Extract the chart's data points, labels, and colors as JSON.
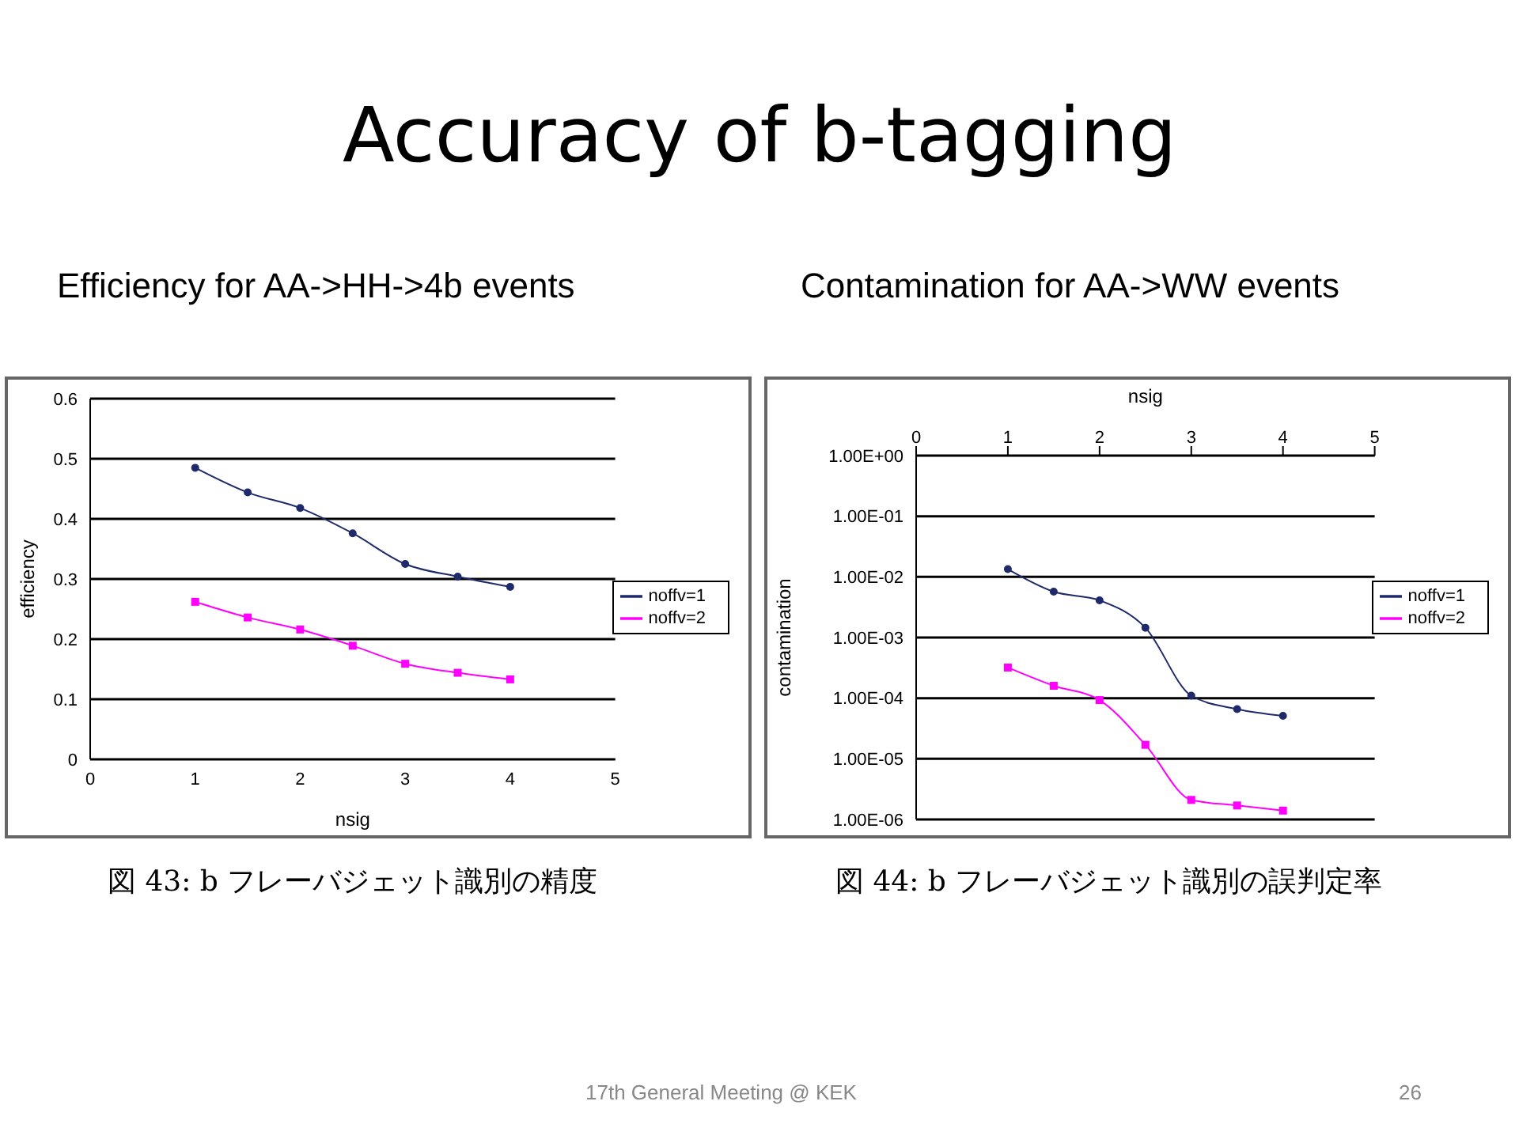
{
  "chart_data": [
    {
      "type": "line",
      "title": "Accuracy of b-tagging",
      "subtitle": "Efficiency for AA->HH->4b events",
      "xlabel": "nsig",
      "ylabel": "efficiency",
      "x": [
        1,
        1.5,
        2,
        2.5,
        3,
        3.5,
        4
      ],
      "xlim": [
        0,
        5
      ],
      "xticks": [
        0,
        1,
        2,
        3,
        4,
        5
      ],
      "ylim": [
        0,
        0.6
      ],
      "yticks": [
        0,
        0.1,
        0.2,
        0.3,
        0.4,
        0.5,
        0.6
      ],
      "grid": "y",
      "legend": "right",
      "line_style": "solid",
      "annotations": [
        "図 43: b フレーバジェット識別の精度"
      ],
      "series": [
        {
          "name": "noffv=1",
          "color": "#1f2a6b",
          "marker": "circle",
          "values": [
            0.485,
            0.444,
            0.418,
            0.376,
            0.325,
            0.304,
            0.287
          ]
        },
        {
          "name": "noffv=2",
          "color": "#ff00ff",
          "marker": "square",
          "values": [
            0.262,
            0.236,
            0.216,
            0.189,
            0.159,
            0.144,
            0.133
          ]
        }
      ]
    },
    {
      "type": "line",
      "subtitle": "Contamination for AA->WW events",
      "xlabel": "nsig",
      "ylabel": "contamination",
      "x": [
        1,
        1.5,
        2,
        2.5,
        3,
        3.5,
        4
      ],
      "xlim": [
        0,
        5
      ],
      "xticks": [
        0,
        1,
        2,
        3,
        4,
        5
      ],
      "log": "y",
      "ylim": [
        1e-06,
        1
      ],
      "yticks": [
        {
          "value": 1e-06,
          "label": "1.00E-06"
        },
        {
          "value": 1e-05,
          "label": "1.00E-05"
        },
        {
          "value": 0.0001,
          "label": "1.00E-04"
        },
        {
          "value": 0.001,
          "label": "1.00E-03"
        },
        {
          "value": 0.01,
          "label": "1.00E-02"
        },
        {
          "value": 0.1,
          "label": "1.00E-01"
        },
        {
          "value": 1,
          "label": "1.00E+00"
        }
      ],
      "grid": "y",
      "legend": "right",
      "line_style": "solid",
      "annotations": [
        "図 44: b フレーバジェット識別の誤判定率",
        "17th General Meeting @ KEK",
        "26"
      ],
      "series": [
        {
          "name": "noffv=1",
          "color": "#1f2a6b",
          "marker": "circle",
          "values": [
            0.0134,
            0.0057,
            0.0041,
            0.00145,
            0.00011,
            6.6e-05,
            5.1e-05
          ]
        },
        {
          "name": "noffv=2",
          "color": "#ff00ff",
          "marker": "square",
          "values": [
            0.00032,
            0.00016,
            9.3e-05,
            1.7e-05,
            2.1e-06,
            1.7e-06,
            1.4e-06
          ]
        }
      ]
    }
  ]
}
